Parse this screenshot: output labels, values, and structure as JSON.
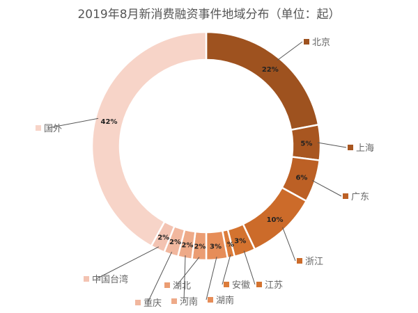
{
  "chart_data": {
    "type": "pie",
    "donut": true,
    "title": "2019年8月新消费融资事件地域分布（单位：起）",
    "unit": "%",
    "legend": "data-labels-outside",
    "slices": [
      {
        "label": "北京",
        "value": 22,
        "color": "#9E521F"
      },
      {
        "label": "上海",
        "value": 5,
        "color": "#A85620"
      },
      {
        "label": "广东",
        "value": 6,
        "color": "#BC6025"
      },
      {
        "label": "浙江",
        "value": 10,
        "color": "#CC6B2A"
      },
      {
        "label": "江苏",
        "value": 3,
        "color": "#D4732F"
      },
      {
        "label": "安徽",
        "value": 1,
        "color": "#DC7C3A"
      },
      {
        "label": "湖南",
        "value": 3,
        "color": "#E68D58"
      },
      {
        "label": "湖北",
        "value": 2,
        "color": "#EB9D73"
      },
      {
        "label": "河南",
        "value": 2,
        "color": "#EEAA88"
      },
      {
        "label": "重庆",
        "value": 2,
        "color": "#F1B79E"
      },
      {
        "label": "中国台湾",
        "value": 2,
        "color": "#F3C3B2"
      },
      {
        "label": "国外",
        "value": 42,
        "color": "#F7D4C8"
      }
    ]
  }
}
